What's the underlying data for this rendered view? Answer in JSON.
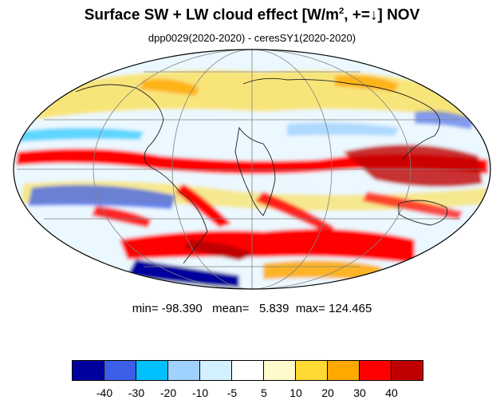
{
  "title": {
    "main": "Surface SW + LW cloud effect [W/m",
    "sup": "2",
    "tail": ", +=↓]  NOV"
  },
  "subtitle": "dpp0029(2020-2020) - ceresSY1(2020-2020)",
  "stats": {
    "text": "min= -98.390   mean=   5.839  max= 124.465"
  },
  "colorbar": {
    "colors": [
      "#00009e",
      "#3c5ee8",
      "#00c0ff",
      "#a0d2ff",
      "#d2f0ff",
      "#ffffff",
      "#fffacb",
      "#ffda32",
      "#ffa800",
      "#ff0000",
      "#c00000"
    ],
    "labels": [
      "-40",
      "-30",
      "-20",
      "-10",
      "-5",
      "5",
      "10",
      "20",
      "30",
      "40"
    ]
  }
}
